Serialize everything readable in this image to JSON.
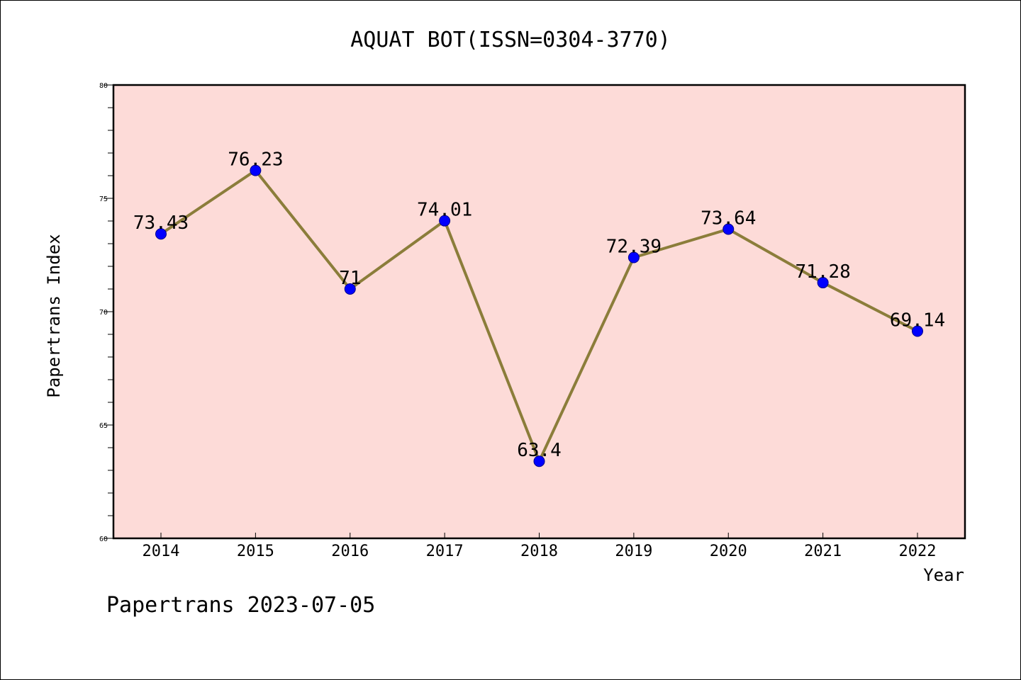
{
  "chart_data": {
    "type": "line",
    "title": "AQUAT BOT(ISSN=0304-3770)",
    "xlabel": "Year",
    "ylabel": "Papertrans Index",
    "categories": [
      "2014",
      "2015",
      "2016",
      "2017",
      "2018",
      "2019",
      "2020",
      "2021",
      "2022"
    ],
    "series": [
      {
        "values": [
          73.43,
          76.23,
          71,
          74.01,
          63.4,
          72.39,
          73.64,
          71.28,
          69.14
        ],
        "labels": [
          "73.43",
          "76.23",
          "71",
          "74.01",
          "63.4",
          "72.39",
          "73.64",
          "71.28",
          "69.14"
        ]
      }
    ],
    "ylim": [
      60,
      80
    ],
    "yticks": [
      "60",
      "65",
      "70",
      "75",
      "80"
    ],
    "grid": false,
    "colors": {
      "plot_background": "#fddbd8",
      "line": "#8b7d3a",
      "marker": "#0000ff",
      "marker_edge": "#00008b"
    }
  },
  "footer": "Papertrans 2023-07-05"
}
